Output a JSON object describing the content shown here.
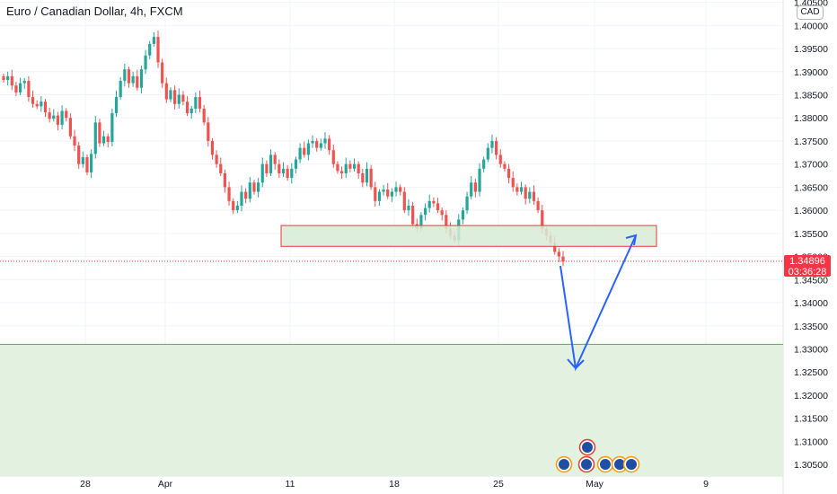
{
  "header": {
    "title": "Euro / Canadian Dollar, 4h, FXCM"
  },
  "axis": {
    "currency": "CAD"
  },
  "last_price": {
    "value": "1.34896",
    "countdown": "03:36:28"
  },
  "colors": {
    "up": "#26a69a",
    "down": "#ef5350",
    "zone_fill": "#d7ecd6",
    "zone_border": "#e53935",
    "target_fill": "#e3f1e1",
    "target_line": "#4caf50",
    "arrow": "#2962ff",
    "grid": "#f0f3fa"
  },
  "chart_data": {
    "type": "candlestick",
    "title": "Euro / Canadian Dollar, 4h, FXCM",
    "y_ticks": [
      "1.40500",
      "1.40000",
      "1.39500",
      "1.39000",
      "1.38500",
      "1.38000",
      "1.37500",
      "1.37000",
      "1.36500",
      "1.36000",
      "1.35500",
      "1.35000",
      "1.34500",
      "1.34000",
      "1.33500",
      "1.33000",
      "1.32500",
      "1.32000",
      "1.31500",
      "1.31000",
      "1.30500"
    ],
    "x_ticks": [
      "28",
      "Apr",
      "11",
      "18",
      "25",
      "May",
      "9"
    ],
    "ylim": [
      1.3025,
      1.4055
    ],
    "grid": true,
    "resistance_zone": [
      1.3522,
      1.3567
    ],
    "target_level": 1.331,
    "closes": [
      1.3882,
      1.389,
      1.387,
      1.3855,
      1.3875,
      1.388,
      1.3845,
      1.383,
      1.3825,
      1.3835,
      1.3812,
      1.3798,
      1.3805,
      1.3785,
      1.3815,
      1.38,
      1.376,
      1.374,
      1.37,
      1.3715,
      1.3682,
      1.3722,
      1.379,
      1.3745,
      1.376,
      1.3748,
      1.381,
      1.3845,
      1.388,
      1.3905,
      1.3875,
      1.389,
      1.3865,
      1.3905,
      1.3935,
      1.396,
      1.3975,
      1.392,
      1.3875,
      1.384,
      1.386,
      1.383,
      1.385,
      1.3835,
      1.381,
      1.382,
      1.3845,
      1.382,
      1.379,
      1.375,
      1.372,
      1.37,
      1.368,
      1.365,
      1.362,
      1.36,
      1.361,
      1.364,
      1.3625,
      1.366,
      1.364,
      1.366,
      1.37,
      1.368,
      1.372,
      1.37,
      1.368,
      1.369,
      1.367,
      1.369,
      1.371,
      1.3735,
      1.372,
      1.3745,
      1.375,
      1.3735,
      1.3745,
      1.3755,
      1.373,
      1.37,
      1.3685,
      1.368,
      1.37,
      1.369,
      1.37,
      1.368,
      1.366,
      1.369,
      1.365,
      1.362,
      1.364,
      1.3645,
      1.363,
      1.364,
      1.365,
      1.364,
      1.36,
      1.361,
      1.357,
      1.356,
      1.359,
      1.3605,
      1.362,
      1.3615,
      1.36,
      1.359,
      1.356,
      1.3545,
      1.3535,
      1.358,
      1.36,
      1.363,
      1.366,
      1.364,
      1.369,
      1.371,
      1.3735,
      1.375,
      1.372,
      1.37,
      1.369,
      1.367,
      1.365,
      1.364,
      1.365,
      1.3625,
      1.364,
      1.362,
      1.36,
      1.356,
      1.3545,
      1.353,
      1.351,
      1.35,
      1.3489
    ]
  }
}
